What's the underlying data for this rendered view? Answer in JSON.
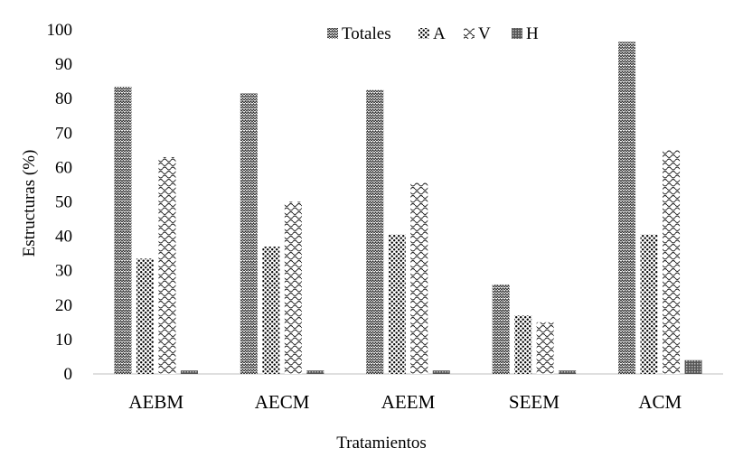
{
  "chart_data": {
    "type": "bar",
    "title": "",
    "xlabel": "Tratamientos",
    "ylabel": "Estructuras (%)",
    "ylim": [
      0,
      100
    ],
    "yticks": [
      0,
      10,
      20,
      30,
      40,
      50,
      60,
      70,
      80,
      90,
      100
    ],
    "grid": false,
    "legend_position": "top-center",
    "categories": [
      "AEBM",
      "AECM",
      "AEEM",
      "SEEM",
      "ACM"
    ],
    "series": [
      {
        "name": "Totales",
        "pattern": "zigzag-dense",
        "values": [
          83.5,
          81.5,
          82.5,
          26,
          96.5
        ]
      },
      {
        "name": "A",
        "pattern": "dots",
        "values": [
          33.5,
          37,
          40.5,
          17,
          40.5
        ]
      },
      {
        "name": "V",
        "pattern": "waves",
        "values": [
          63,
          50,
          55.5,
          15,
          65
        ]
      },
      {
        "name": "H",
        "pattern": "grid-dark",
        "values": [
          1,
          1,
          1,
          1,
          4
        ]
      }
    ]
  }
}
